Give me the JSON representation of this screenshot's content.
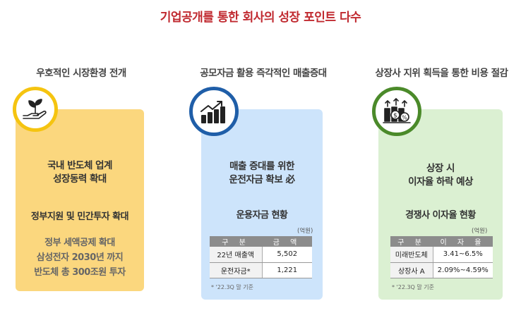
{
  "title": "기업공개를 통한 회사의 성장 포인트 다수",
  "col1": {
    "heading": "우호적인 시장환경 전개",
    "icon": "hand-plant-icon",
    "line1": "국내 반도체 업계",
    "line2": "성장동력 확대",
    "sub": "정부지원 및 민간투자 확대",
    "detail1": "정부 세액공제 확대",
    "detail2": "삼성전자 2030년 까지",
    "detail3": "반도체 총 300조원 투자",
    "color": "#f5c410"
  },
  "col2": {
    "heading": "공모자금 활용 즉각적인 매출증대",
    "icon": "growth-chart-icon",
    "line1": "매출 증대를 위한",
    "line2": "운전자금 확보 必",
    "sub": "운용자금 현황",
    "unit": "(억원)",
    "table": {
      "headers": [
        "구 분",
        "금 액"
      ],
      "rows": [
        [
          "22년 매출액",
          "5,502"
        ],
        [
          "운전자금*",
          "1,221"
        ]
      ]
    },
    "note": "* '22.3Q 말 기준",
    "color": "#1f5ea8"
  },
  "col3": {
    "heading": "상장사 지위 획득을 통한 비용 절감",
    "icon": "coins-percent-icon",
    "line1": "상장 시",
    "line2": "이자율 하락 예상",
    "sub": "경쟁사 이자율 현황",
    "unit": "(억원)",
    "table": {
      "headers": [
        "구 분",
        "이 자 율"
      ],
      "rows": [
        [
          "미래반도체",
          "3.41~6.5%"
        ],
        [
          "상장사 A",
          "2.09%~4.59%"
        ]
      ]
    },
    "note": "* '22.3Q 말 기준",
    "color": "#4b8a2a"
  }
}
